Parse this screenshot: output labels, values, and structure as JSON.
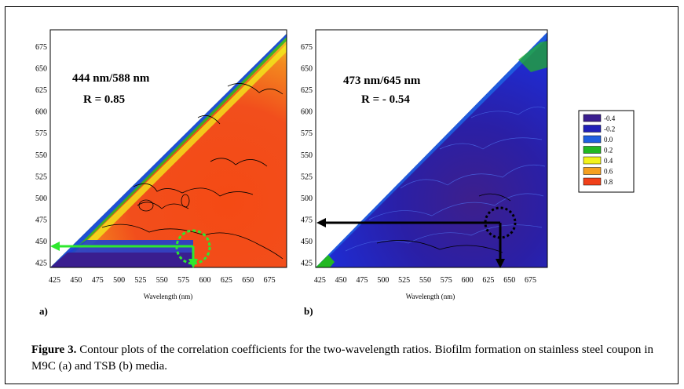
{
  "chart_data": [
    {
      "type": "heatmap",
      "panel": "a)",
      "annotation": "444 nm/588 nm",
      "r_text": "R = 0.85",
      "xlabel": "Wavelength (nm)",
      "x_ticks": [
        "425",
        "450",
        "475",
        "500",
        "525",
        "550",
        "575",
        "600",
        "625",
        "650",
        "675"
      ],
      "y_ticks": [
        "425",
        "450",
        "475",
        "500",
        "525",
        "550",
        "575",
        "600",
        "625",
        "650",
        "675"
      ],
      "xlim": [
        420,
        695
      ],
      "ylim": [
        420,
        695
      ],
      "marker": {
        "x": 588,
        "y": 444
      },
      "dominant_level": 0.8,
      "arrow_color": "#2ee82e"
    },
    {
      "type": "heatmap",
      "panel": "b)",
      "annotation": "473 nm/645 nm",
      "r_text": "R = - 0.54",
      "xlabel": "Wavelength (nm)",
      "x_ticks": [
        "425",
        "450",
        "475",
        "500",
        "525",
        "550",
        "575",
        "600",
        "625",
        "650",
        "675"
      ],
      "y_ticks": [
        "425",
        "450",
        "475",
        "500",
        "525",
        "550",
        "575",
        "600",
        "625",
        "650",
        "675"
      ],
      "xlim": [
        420,
        695
      ],
      "ylim": [
        420,
        695
      ],
      "marker": {
        "x": 645,
        "y": 473
      },
      "dominant_level": -0.4,
      "arrow_color": "#000000"
    }
  ],
  "legend": {
    "levels": [
      {
        "label": "-0.4",
        "color": "#3a1e8f"
      },
      {
        "label": "-0.2",
        "color": "#2020b8"
      },
      {
        "label": "0.0",
        "color": "#1f5fe0"
      },
      {
        "label": "0.2",
        "color": "#22b822"
      },
      {
        "label": "0.4",
        "color": "#f2f21c"
      },
      {
        "label": "0.6",
        "color": "#f5a020"
      },
      {
        "label": "0.8",
        "color": "#f0401a"
      }
    ]
  },
  "caption": {
    "prefix": "Figure 3",
    "dot": ".",
    "text": " Contour plots of the correlation coefficients for the two-wavelength ratios. Biofilm formation on stainless steel coupon in M9C (a) and TSB (b) media."
  }
}
